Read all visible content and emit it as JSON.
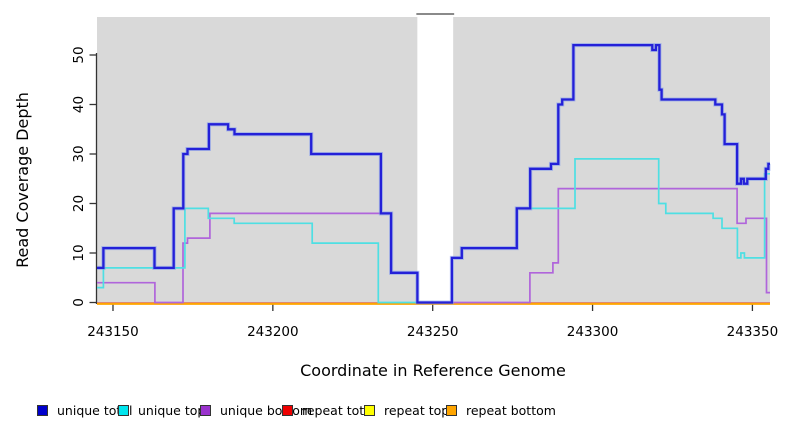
{
  "chart_data": {
    "type": "line",
    "subtype": "step",
    "title": "",
    "xlabel": "Coordinate in Reference Genome",
    "ylabel": "Read Coverage Depth",
    "xlim": [
      243145,
      243355.5
    ],
    "ylim": [
      0,
      57.5
    ],
    "x_ticks": [
      243150,
      243200,
      243250,
      243300,
      243350
    ],
    "y_ticks": [
      0,
      10,
      20,
      30,
      40,
      50
    ],
    "grid": false,
    "panel_bg": "#d9d9d9",
    "axis_color": "#333333",
    "gap_region": {
      "from": 243245.2,
      "to": 243256.4,
      "note": "white masked band, all series drop to 0"
    },
    "legend_position": "bottom",
    "series": [
      {
        "name": "unique total",
        "color": "#2420d8",
        "halo_color": "#7b97ee",
        "legend_color": "#0000cc",
        "width": 2.3,
        "points": [
          [
            243145,
            7
          ],
          [
            243147,
            11
          ],
          [
            243163,
            7
          ],
          [
            243169,
            19
          ],
          [
            243172,
            30
          ],
          [
            243173.3,
            31
          ],
          [
            243180,
            36
          ],
          [
            243186,
            35
          ],
          [
            243188,
            34
          ],
          [
            243212,
            30
          ],
          [
            243233.8,
            18
          ],
          [
            243237,
            6
          ],
          [
            243245.2,
            0
          ],
          [
            243256,
            9
          ],
          [
            243259.1,
            11
          ],
          [
            243276.3,
            19
          ],
          [
            243280.5,
            27
          ],
          [
            243287,
            28
          ],
          [
            243289.3,
            40
          ],
          [
            243290.5,
            41
          ],
          [
            243294,
            52
          ],
          [
            243318.7,
            51
          ],
          [
            243319.8,
            52
          ],
          [
            243320.9,
            43
          ],
          [
            243321.6,
            41
          ],
          [
            243338.4,
            40
          ],
          [
            243340.5,
            38
          ],
          [
            243341.3,
            32
          ],
          [
            243345.2,
            24
          ],
          [
            243346.4,
            25
          ],
          [
            243347.3,
            24
          ],
          [
            243348.4,
            25
          ],
          [
            243354.2,
            27
          ],
          [
            243355,
            28
          ]
        ]
      },
      {
        "name": "unique top",
        "color": "#4edfe3",
        "legend_color": "#00e5ee",
        "width": 1.7,
        "points": [
          [
            243145,
            3
          ],
          [
            243147,
            7
          ],
          [
            243172.5,
            19
          ],
          [
            243179.8,
            17
          ],
          [
            243187.9,
            16
          ],
          [
            243212.3,
            12
          ],
          [
            243233,
            0
          ],
          [
            243256,
            9
          ],
          [
            243259.1,
            11
          ],
          [
            243276.3,
            19
          ],
          [
            243294.5,
            29
          ],
          [
            243320.7,
            20
          ],
          [
            243322.9,
            18
          ],
          [
            243337.7,
            17
          ],
          [
            243340.5,
            15
          ],
          [
            243345.3,
            9
          ],
          [
            243346.4,
            10
          ],
          [
            243347.5,
            9
          ],
          [
            243353.8,
            26
          ]
        ]
      },
      {
        "name": "unique bottom",
        "color": "#b065db",
        "legend_color": "#9a32cd",
        "width": 1.7,
        "points": [
          [
            243145,
            4
          ],
          [
            243163.1,
            0
          ],
          [
            243171.9,
            12
          ],
          [
            243173.3,
            13
          ],
          [
            243180.3,
            18
          ],
          [
            243237,
            6
          ],
          [
            243245.2,
            0
          ],
          [
            243280.4,
            6
          ],
          [
            243287.6,
            8
          ],
          [
            243289.3,
            23
          ],
          [
            243345.2,
            16
          ],
          [
            243348,
            17
          ],
          [
            243354.4,
            2
          ]
        ]
      },
      {
        "name": "repeat total",
        "color": "#d42a50",
        "legend_color": "#ee0000",
        "width": 1.6,
        "points": [
          [
            243145,
            0
          ]
        ]
      },
      {
        "name": "repeat top",
        "color": "#ffff00",
        "legend_color": "#ffff00",
        "width": 1.6,
        "points": [
          [
            243145,
            0
          ]
        ]
      },
      {
        "name": "repeat bottom",
        "color": "#ffa500",
        "legend_color": "#ffa500",
        "width": 2.1,
        "points": [
          [
            243145,
            0
          ]
        ]
      }
    ]
  }
}
